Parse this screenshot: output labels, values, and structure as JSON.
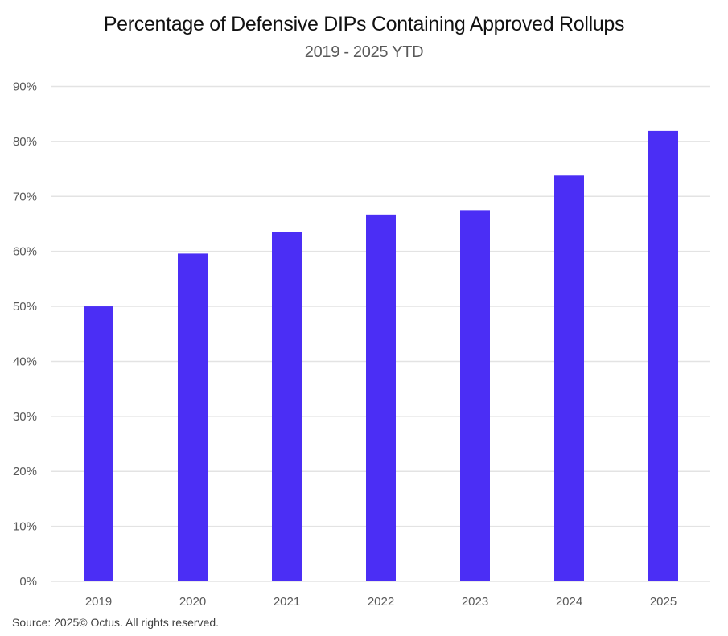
{
  "chart_data": {
    "type": "bar",
    "title": "Percentage of Defensive DIPs Containing Approved Rollups",
    "subtitle": "2019 - 2025 YTD",
    "xlabel": "",
    "ylabel": "",
    "categories": [
      "2019",
      "2020",
      "2021",
      "2022",
      "2023",
      "2024",
      "2025"
    ],
    "values": [
      50.0,
      59.6,
      63.6,
      66.7,
      67.5,
      73.8,
      81.9
    ],
    "ylim": [
      0,
      90
    ],
    "yticks": [
      0,
      10,
      20,
      30,
      40,
      50,
      60,
      70,
      80,
      90
    ],
    "ytick_labels": [
      "0%",
      "10%",
      "20%",
      "30%",
      "40%",
      "50%",
      "60%",
      "70%",
      "80%",
      "90%"
    ],
    "grid": true,
    "legend": "none",
    "bar_color": "#4B2EF5",
    "grid_color": "#E3E3E3"
  },
  "footer": {
    "source": "Source: 2025© Octus. All rights reserved."
  }
}
